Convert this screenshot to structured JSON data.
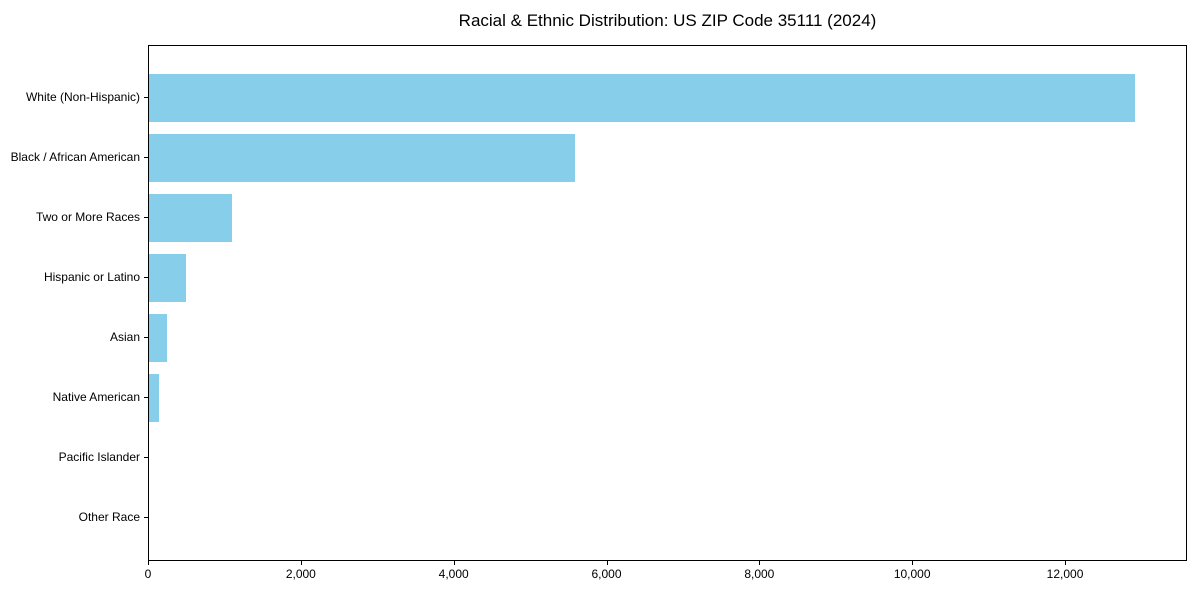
{
  "chart_data": {
    "type": "bar",
    "orientation": "horizontal",
    "title": "Racial & Ethnic Distribution: US ZIP Code 35111 (2024)",
    "categories": [
      "White (Non-Hispanic)",
      "Black / African American",
      "Two or More Races",
      "Hispanic or Latino",
      "Asian",
      "Native American",
      "Pacific Islander",
      "Other Race"
    ],
    "values": [
      12900,
      5570,
      1080,
      490,
      240,
      130,
      0,
      0
    ],
    "xlabel": "",
    "ylabel": "",
    "xlim": [
      0,
      13570
    ],
    "x_ticks": [
      0,
      2000,
      4000,
      6000,
      8000,
      10000,
      12000
    ],
    "x_tick_labels": [
      "0",
      "2,000",
      "4,000",
      "6,000",
      "8,000",
      "10,000",
      "12,000"
    ],
    "bar_color": "#87CEEB",
    "text_color": "#000000",
    "grid": false,
    "legend": null
  }
}
